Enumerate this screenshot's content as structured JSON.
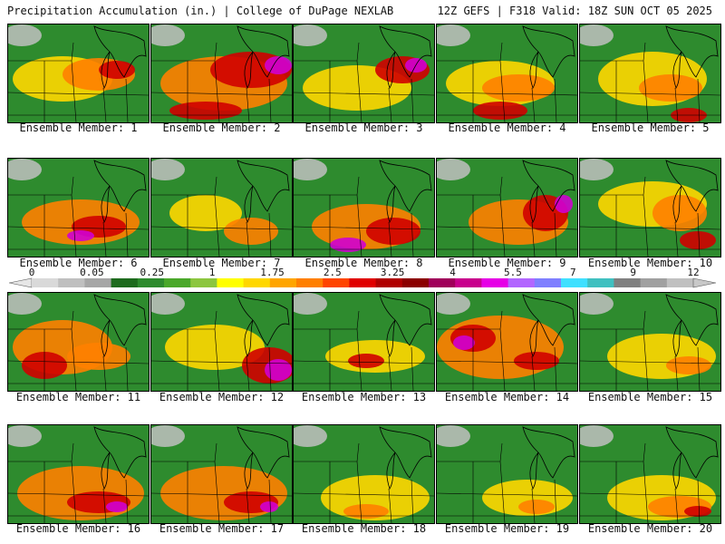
{
  "header": {
    "left_title": "Precipitation Accumulation (in.) | College of DuPage NEXLAB",
    "right_title": "12Z GEFS | F318 Valid: 18Z SUN OCT 05 2025"
  },
  "legend": {
    "tick_labels": [
      "0",
      "0.05",
      "0.25",
      "1",
      "1.75",
      "2.5",
      "3.25",
      "4",
      "5.5",
      "7",
      "9",
      "12"
    ],
    "colors": [
      "#d9d9d9",
      "#bfbfbf",
      "#a6a6a6",
      "#1e6b1e",
      "#2e8b2e",
      "#4aa82a",
      "#8cc63f",
      "#ffff00",
      "#ffd700",
      "#ffa500",
      "#ff7f00",
      "#ff4500",
      "#e00000",
      "#b00000",
      "#8b0000",
      "#a0005a",
      "#c8008c",
      "#e600e6",
      "#b266ff",
      "#7f7fff",
      "#40e0ff",
      "#40c0c0",
      "#808080",
      "#a0a0a0",
      "#c0c0c0"
    ]
  },
  "members": [
    {
      "label": "Ensemble Member: 1"
    },
    {
      "label": "Ensemble Member: 2"
    },
    {
      "label": "Ensemble Member: 3"
    },
    {
      "label": "Ensemble Member: 4"
    },
    {
      "label": "Ensemble Member: 5"
    },
    {
      "label": "Ensemble Member: 6"
    },
    {
      "label": "Ensemble Member: 7"
    },
    {
      "label": "Ensemble Member: 8"
    },
    {
      "label": "Ensemble Member: 9"
    },
    {
      "label": "Ensemble Member: 10"
    },
    {
      "label": "Ensemble Member: 11"
    },
    {
      "label": "Ensemble Member: 12"
    },
    {
      "label": "Ensemble Member: 13"
    },
    {
      "label": "Ensemble Member: 14"
    },
    {
      "label": "Ensemble Member: 15"
    },
    {
      "label": "Ensemble Member: 16"
    },
    {
      "label": "Ensemble Member: 17"
    },
    {
      "label": "Ensemble Member: 18"
    },
    {
      "label": "Ensemble Member: 19"
    },
    {
      "label": "Ensemble Member: 20"
    }
  ]
}
